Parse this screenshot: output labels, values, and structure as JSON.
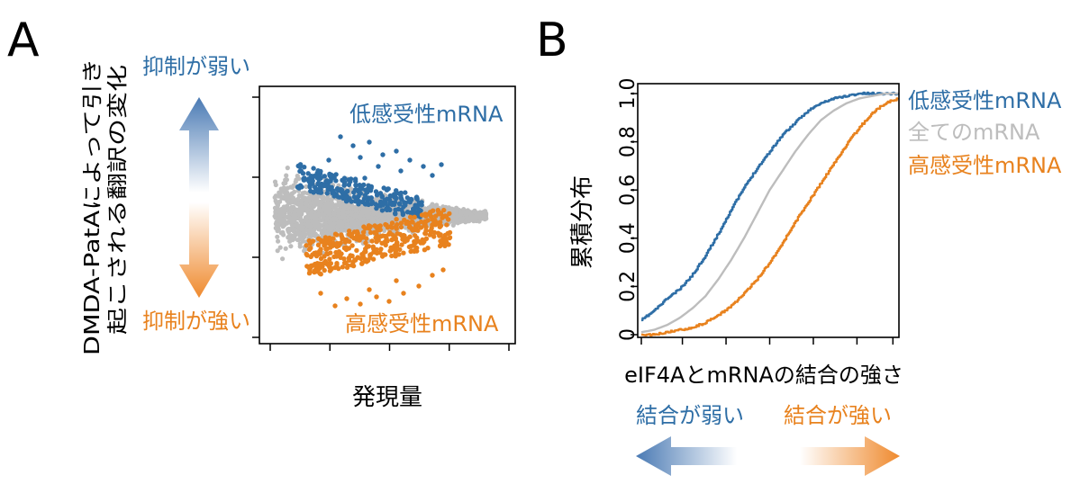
{
  "panels": {
    "a_label": "A",
    "b_label": "B"
  },
  "colors": {
    "blue": "#2e6ea6",
    "orange": "#e8821e",
    "gray": "#bdbdbd",
    "axis": "#000000"
  },
  "chart_data": [
    {
      "type": "scatter",
      "panel": "A",
      "title": "",
      "xlabel": "発現量",
      "ylabel_line1": "DMDA-PatAによって引き",
      "ylabel_line2": "起こされる翻訳の変化",
      "arrow_up_label": "抑制が弱い",
      "arrow_down_label": "抑制が強い",
      "series": [
        {
          "name": "低感受性mRNA",
          "color": "#2e6ea6"
        },
        {
          "name": "",
          "color": "#bdbdbd"
        },
        {
          "name": "高感受性mRNA",
          "color": "#e8821e"
        }
      ],
      "x_ticks": 5,
      "y_ticks": 4,
      "tick_labels_shown": false
    },
    {
      "type": "line",
      "panel": "B",
      "title": "",
      "xlabel": "eIF4AとmRNAの結合の強さ",
      "ylabel": "累積分布",
      "ylim": [
        0,
        1
      ],
      "yticks": [
        "0",
        "0.2",
        "0.4",
        "0.6",
        "0.8",
        "1.0"
      ],
      "ytick_values": [
        0,
        0.2,
        0.4,
        0.6,
        0.8,
        1.0
      ],
      "xlim": [
        0,
        1
      ],
      "x_tick_values": [
        0,
        0.16,
        0.33,
        0.5,
        0.67,
        0.84,
        0.98
      ],
      "arrow_left_label": "結合が弱い",
      "arrow_right_label": "結合が強い",
      "series": [
        {
          "name": "低感受性mRNA",
          "color": "#2e6ea6",
          "x": [
            0.0,
            0.05,
            0.1,
            0.15,
            0.2,
            0.25,
            0.3,
            0.35,
            0.4,
            0.45,
            0.5,
            0.55,
            0.6,
            0.65,
            0.7,
            0.75,
            0.8,
            0.85,
            0.9,
            0.95,
            1.0
          ],
          "y": [
            0.06,
            0.1,
            0.15,
            0.19,
            0.25,
            0.33,
            0.42,
            0.52,
            0.61,
            0.69,
            0.76,
            0.83,
            0.88,
            0.93,
            0.96,
            0.98,
            0.99,
            1.0,
            1.0,
            1.0,
            1.0
          ]
        },
        {
          "name": "全てのmRNA",
          "color": "#bdbdbd",
          "x": [
            0.0,
            0.05,
            0.1,
            0.15,
            0.2,
            0.25,
            0.3,
            0.35,
            0.4,
            0.45,
            0.5,
            0.55,
            0.6,
            0.65,
            0.7,
            0.75,
            0.8,
            0.85,
            0.9,
            0.95,
            1.0
          ],
          "y": [
            0.01,
            0.02,
            0.04,
            0.07,
            0.11,
            0.16,
            0.23,
            0.31,
            0.4,
            0.5,
            0.6,
            0.68,
            0.76,
            0.83,
            0.89,
            0.93,
            0.96,
            0.98,
            0.99,
            1.0,
            1.0
          ]
        },
        {
          "name": "高感受性mRNA",
          "color": "#e8821e",
          "x": [
            0.0,
            0.05,
            0.1,
            0.15,
            0.2,
            0.25,
            0.3,
            0.35,
            0.4,
            0.45,
            0.5,
            0.55,
            0.6,
            0.65,
            0.7,
            0.75,
            0.8,
            0.85,
            0.9,
            0.95,
            1.0
          ],
          "y": [
            0.0,
            0.0,
            0.01,
            0.02,
            0.03,
            0.05,
            0.08,
            0.12,
            0.17,
            0.23,
            0.3,
            0.38,
            0.47,
            0.55,
            0.63,
            0.71,
            0.79,
            0.86,
            0.92,
            0.96,
            0.98
          ]
        }
      ]
    }
  ]
}
